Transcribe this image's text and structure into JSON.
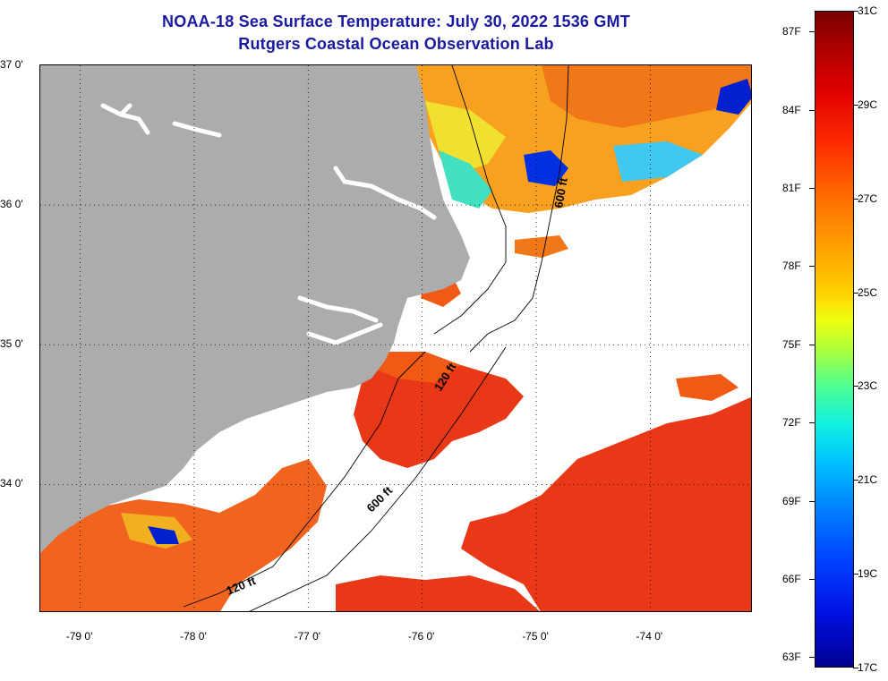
{
  "header": {
    "title": "NOAA-18 Sea Surface Temperature:  July 30, 2022 1536 GMT",
    "subtitle": "Rutgers Coastal Ocean Observation Lab"
  },
  "map": {
    "latitudes": [
      {
        "label": "37 0'",
        "lat": 37.0
      },
      {
        "label": "36 0'",
        "lat": 36.0
      },
      {
        "label": "35 0'",
        "lat": 35.0
      },
      {
        "label": "34 0'",
        "lat": 34.0
      }
    ],
    "longitudes": [
      {
        "label": "-79 0'",
        "lon": -79.0
      },
      {
        "label": "-78 0'",
        "lon": -78.0
      },
      {
        "label": "-77 0'",
        "lon": -77.0
      },
      {
        "label": "-76 0'",
        "lon": -76.0
      },
      {
        "label": "-75 0'",
        "lon": -75.0
      },
      {
        "label": "-74 0'",
        "lon": -74.0
      }
    ],
    "lat_range": [
      33.08,
      37.0
    ],
    "lon_range": [
      -79.35,
      -73.1
    ],
    "isobaths": [
      {
        "label": "600 ft"
      },
      {
        "label": "120 ft"
      },
      {
        "label": "600 ft"
      },
      {
        "label": "120 ft"
      }
    ],
    "colors": {
      "land": "#acacac",
      "cloud": "#ffffff",
      "water_warm": "#f05a14",
      "water_hot": "#e83818",
      "water_mid": "#f8a020",
      "water_cool": "#f0e030",
      "water_cold": "#00b0ff",
      "water_coldest": "#0010e0"
    }
  },
  "colorbar": {
    "min_c": 17,
    "max_c": 31,
    "fahrenheit": [
      {
        "label": "63F",
        "value": 63
      },
      {
        "label": "66F",
        "value": 66
      },
      {
        "label": "69F",
        "value": 69
      },
      {
        "label": "72F",
        "value": 72
      },
      {
        "label": "75F",
        "value": 75
      },
      {
        "label": "78F",
        "value": 78
      },
      {
        "label": "81F",
        "value": 81
      },
      {
        "label": "84F",
        "value": 84
      },
      {
        "label": "87F",
        "value": 87
      }
    ],
    "celsius": [
      {
        "label": "17C",
        "value": 17
      },
      {
        "label": "19C",
        "value": 19
      },
      {
        "label": "21C",
        "value": 21
      },
      {
        "label": "23C",
        "value": 23
      },
      {
        "label": "25C",
        "value": 25
      },
      {
        "label": "27C",
        "value": 27
      },
      {
        "label": "29C",
        "value": 29
      },
      {
        "label": "31C",
        "value": 31
      }
    ]
  }
}
